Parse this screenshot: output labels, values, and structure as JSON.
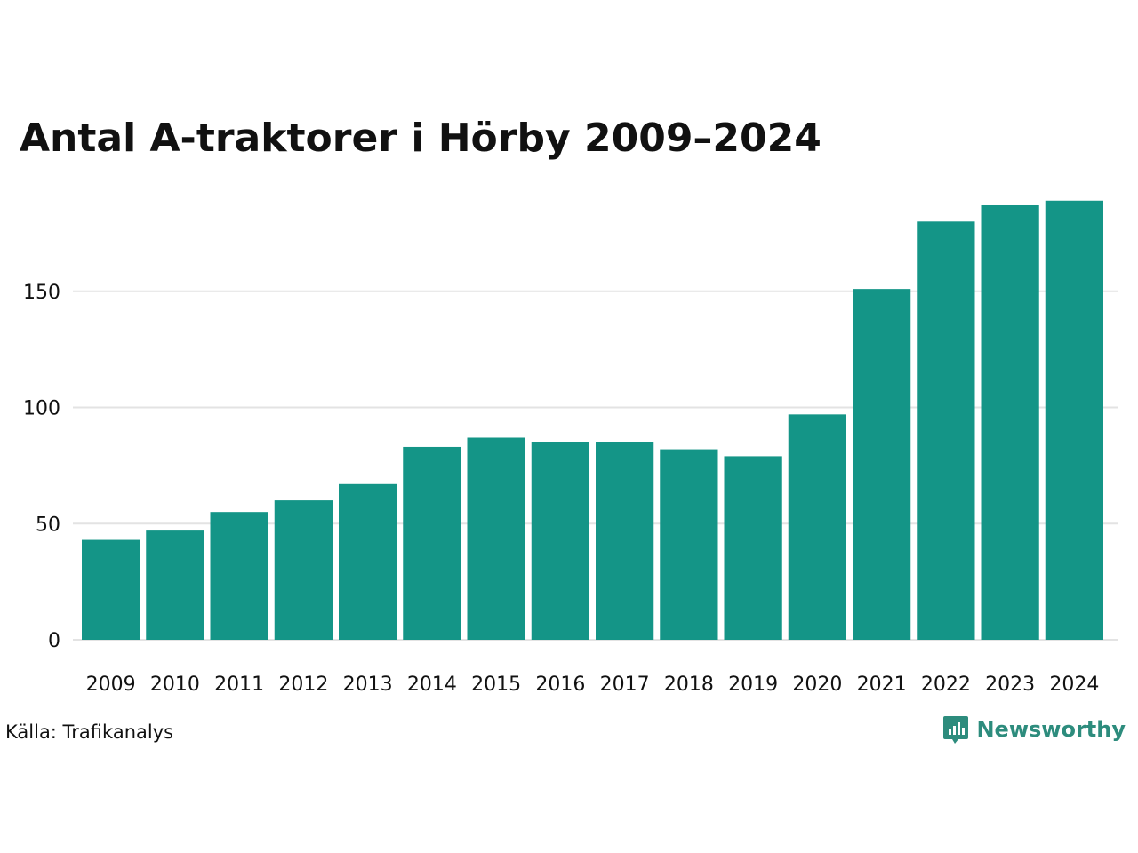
{
  "title": "Antal A-traktorer i Hörby 2009–2024",
  "source": "Källa: Trafikanalys",
  "brand": {
    "name": "Newsworthy",
    "icon": "bar-chart-speech-bubble-icon"
  },
  "colors": {
    "bar": "#149587",
    "grid": "#e3e3e3",
    "text": "#111111",
    "brand": "#2d8c7d"
  },
  "chart_data": {
    "type": "bar",
    "categories": [
      "2009",
      "2010",
      "2011",
      "2012",
      "2013",
      "2014",
      "2015",
      "2016",
      "2017",
      "2018",
      "2019",
      "2020",
      "2021",
      "2022",
      "2023",
      "2024"
    ],
    "values": [
      43,
      47,
      55,
      60,
      67,
      83,
      87,
      85,
      85,
      82,
      79,
      97,
      151,
      180,
      187,
      189
    ],
    "yticks": [
      0,
      50,
      100,
      150
    ],
    "ylim": [
      0,
      200
    ],
    "grid": true,
    "xlabel": "",
    "ylabel": ""
  }
}
